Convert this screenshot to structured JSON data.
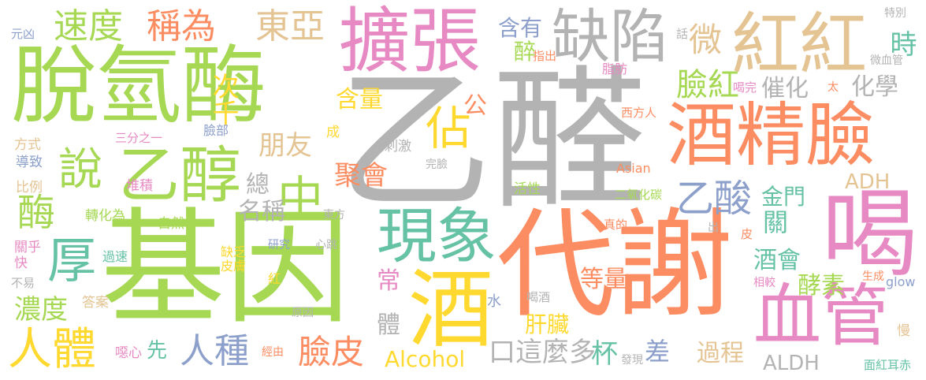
{
  "words": [
    {
      "text": "乙醛",
      "color": "#b3b3b3"
    },
    {
      "text": "基因",
      "color": "#a6d854"
    },
    {
      "text": "代謝",
      "color": "#fc8d62"
    },
    {
      "text": "脫氫酶",
      "color": "#a6d854"
    },
    {
      "text": "擴張",
      "color": "#e78ac3"
    },
    {
      "text": "酒精臉",
      "color": "#fc8d62"
    },
    {
      "text": "紅紅",
      "color": "#e5c494"
    },
    {
      "text": "缺陷",
      "color": "#b3b3b3"
    },
    {
      "text": "喝",
      "color": "#e78ac3"
    },
    {
      "text": "血管",
      "color": "#e78ac3"
    },
    {
      "text": "酒",
      "color": "#ffd92f"
    },
    {
      "text": "現象",
      "color": "#66c2a5"
    },
    {
      "text": "乙醇",
      "color": "#a6d854"
    },
    {
      "text": "厚",
      "color": "#66c2a5"
    },
    {
      "text": "人體",
      "color": "#ffd92f"
    },
    {
      "text": "速度",
      "color": "#a6d854"
    },
    {
      "text": "稱為",
      "color": "#fc8d62"
    },
    {
      "text": "東亞",
      "color": "#e5c494"
    },
    {
      "text": "說",
      "color": "#a6d854"
    },
    {
      "text": "酶",
      "color": "#a6d854"
    },
    {
      "text": "中",
      "color": "#a6d854"
    },
    {
      "text": "佔",
      "color": "#ffd92f"
    },
    {
      "text": "乙酸",
      "color": "#8da0cb"
    },
    {
      "text": "微",
      "color": "#e5c494"
    },
    {
      "text": "臉紅",
      "color": "#a6d854"
    },
    {
      "text": "人種",
      "color": "#8da0cb"
    },
    {
      "text": "臉皮",
      "color": "#fc8d62"
    },
    {
      "text": "濃度",
      "color": "#a6d854"
    },
    {
      "text": "含有",
      "color": "#8da0cb"
    },
    {
      "text": "醉",
      "color": "#a6d854"
    },
    {
      "text": "時",
      "color": "#66c2a5"
    },
    {
      "text": "次千",
      "color": "#ffd92f"
    },
    {
      "text": "朋友",
      "color": "#e5c494"
    },
    {
      "text": "聚會",
      "color": "#fc8d62"
    },
    {
      "text": "催化",
      "color": "#b3b3b3"
    },
    {
      "text": "化學",
      "color": "#b3b3b3"
    },
    {
      "text": "含量",
      "color": "#ffd92f"
    },
    {
      "text": "公",
      "color": "#fc8d62"
    },
    {
      "text": "總",
      "color": "#b3b3b3"
    },
    {
      "text": "名稱",
      "color": "#b3b3b3"
    },
    {
      "text": "金門",
      "color": "#66c2a5"
    },
    {
      "text": "關",
      "color": "#66c2a5"
    },
    {
      "text": "酒會",
      "color": "#66c2a5"
    },
    {
      "text": "酵素",
      "color": "#a6d854"
    },
    {
      "text": "ADH",
      "color": "#e5c494"
    },
    {
      "text": "ALDH",
      "color": "#b3b3b3"
    },
    {
      "text": "等量",
      "color": "#fc8d62"
    },
    {
      "text": "常",
      "color": "#e78ac3"
    },
    {
      "text": "體",
      "color": "#b3b3b3"
    },
    {
      "text": "Alcohol",
      "color": "#ffd92f"
    },
    {
      "text": "口這麼多",
      "color": "#b3b3b3"
    },
    {
      "text": "杯",
      "color": "#66c2a5"
    },
    {
      "text": "差",
      "color": "#8da0cb"
    },
    {
      "text": "過程",
      "color": "#e5c494"
    },
    {
      "text": "先",
      "color": "#66c2a5"
    },
    {
      "text": "肝臟",
      "color": "#ffd92f"
    },
    {
      "text": "元凶",
      "color": "#8da0cb"
    },
    {
      "text": "方式",
      "color": "#e5c494"
    },
    {
      "text": "導致",
      "color": "#8da0cb"
    },
    {
      "text": "比例",
      "color": "#e5c494"
    },
    {
      "text": "關乎",
      "color": "#e78ac3"
    },
    {
      "text": "快",
      "color": "#e78ac3"
    },
    {
      "text": "不易",
      "color": "#b3b3b3"
    },
    {
      "text": "答案",
      "color": "#e5c494"
    },
    {
      "text": "噁心",
      "color": "#e78ac3"
    },
    {
      "text": "三分之一",
      "color": "#e78ac3"
    },
    {
      "text": "臉部",
      "color": "#8da0cb"
    },
    {
      "text": "堆積",
      "color": "#e78ac3"
    },
    {
      "text": "轉化為",
      "color": "#a6d854"
    },
    {
      "text": "自然",
      "color": "#a6d854"
    },
    {
      "text": "缺乏",
      "color": "#ffd92f"
    },
    {
      "text": "皮膚",
      "color": "#ffd92f"
    },
    {
      "text": "過速",
      "color": "#66c2a5"
    },
    {
      "text": "紅",
      "color": "#ffd92f"
    },
    {
      "text": "研究",
      "color": "#8da0cb"
    },
    {
      "text": "心跳",
      "color": "#b3b3b3"
    },
    {
      "text": "原因",
      "color": "#b3b3b3"
    },
    {
      "text": "經由",
      "color": "#fc8d62"
    },
    {
      "text": "成",
      "color": "#ffd92f"
    },
    {
      "text": "刺激",
      "color": "#b3b3b3"
    },
    {
      "text": "完臉",
      "color": "#b3b3b3"
    },
    {
      "text": "活性",
      "color": "#a6d854"
    },
    {
      "text": "東方",
      "color": "#b3b3b3"
    },
    {
      "text": "水",
      "color": "#8da0cb"
    },
    {
      "text": "喝酒",
      "color": "#b3b3b3"
    },
    {
      "text": "話",
      "color": "#b3b3b3"
    },
    {
      "text": "指出",
      "color": "#fc8d62"
    },
    {
      "text": "脂肪",
      "color": "#e78ac3"
    },
    {
      "text": "西方人",
      "color": "#fc8d62"
    },
    {
      "text": "Asian",
      "color": "#fc8d62"
    },
    {
      "text": "二氧化碳",
      "color": "#a6d854"
    },
    {
      "text": "真的",
      "color": "#fc8d62"
    },
    {
      "text": "出",
      "color": "#b3b3b3"
    },
    {
      "text": "皮",
      "color": "#fc8d62"
    },
    {
      "text": "發現",
      "color": "#b3b3b3"
    },
    {
      "text": "太",
      "color": "#fc8d62"
    },
    {
      "text": "喝完",
      "color": "#e78ac3"
    },
    {
      "text": "特別",
      "color": "#b3b3b3"
    },
    {
      "text": "微血管",
      "color": "#b3b3b3"
    },
    {
      "text": "相較",
      "color": "#e78ac3"
    },
    {
      "text": "生成",
      "color": "#fc8d62"
    },
    {
      "text": "glow",
      "color": "#8da0cb"
    },
    {
      "text": "慢",
      "color": "#e5c494"
    },
    {
      "text": "面紅耳赤",
      "color": "#66c2a5"
    }
  ]
}
